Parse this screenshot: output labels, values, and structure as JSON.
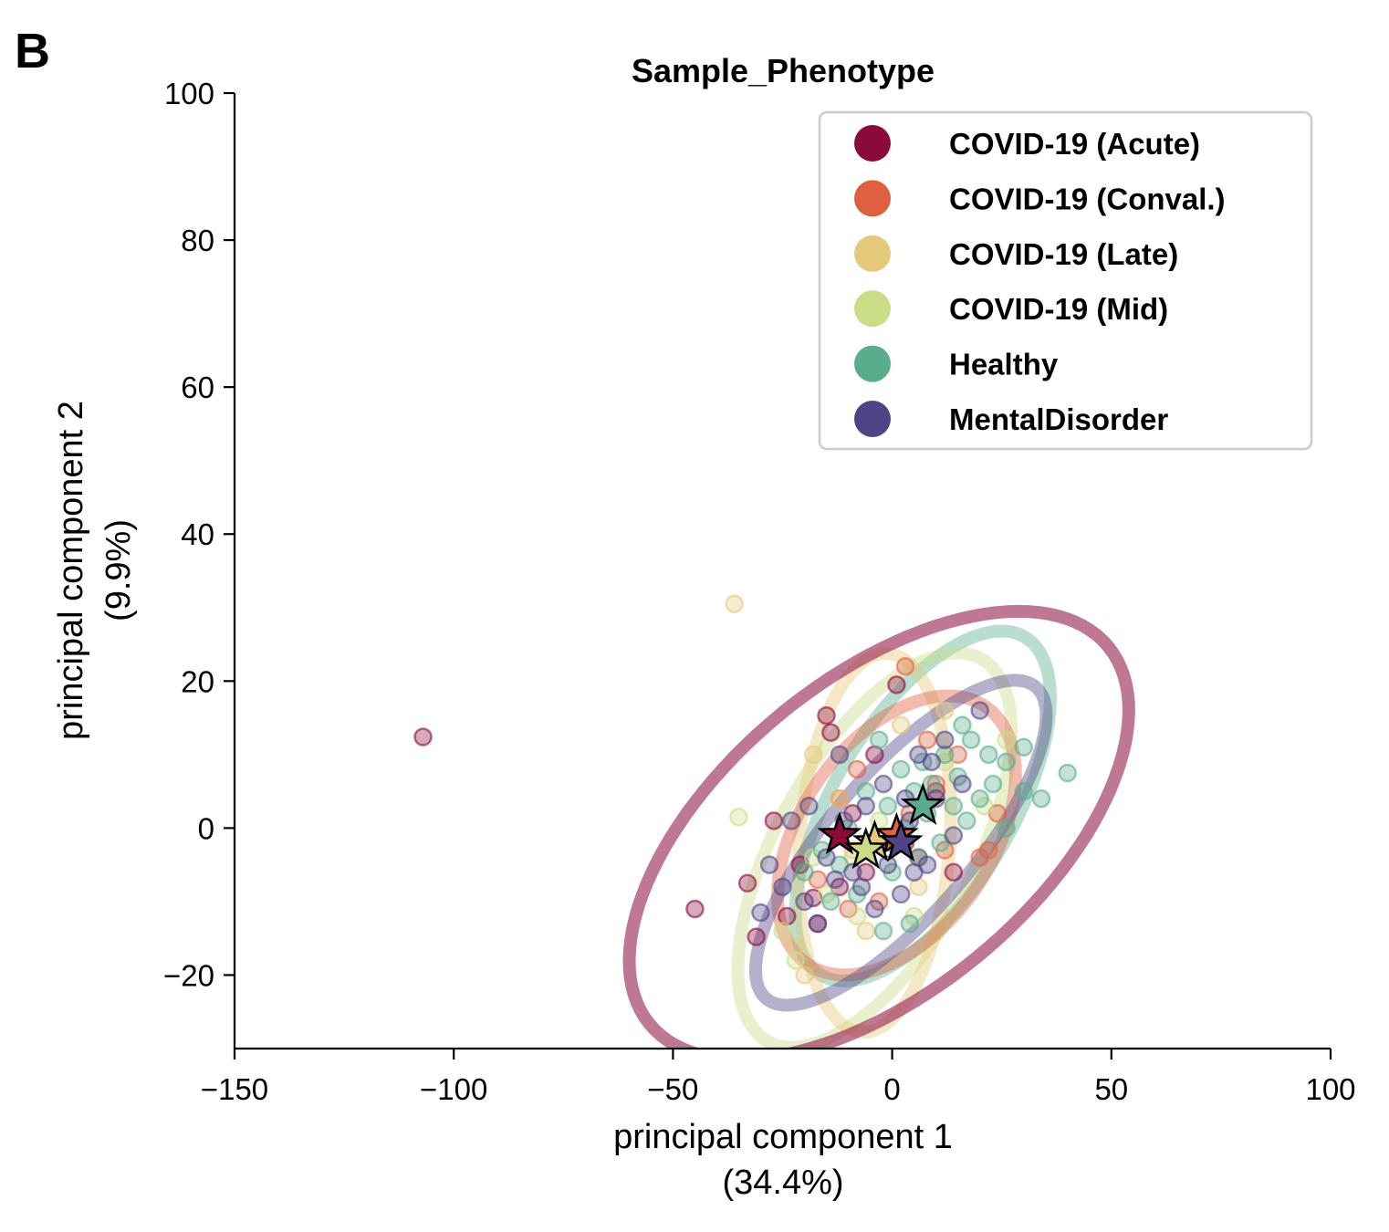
{
  "panel_label": "B",
  "chart_data": {
    "type": "scatter",
    "title": "Sample_Phenotype",
    "xlabel_line1": "principal component 1",
    "xlabel_line2": "(34.4%)",
    "ylabel_line1": "principal component 2",
    "ylabel_line2": "(9.9%)",
    "xlim": [
      -150,
      100
    ],
    "ylim": [
      -30,
      100
    ],
    "xticks": [
      -150,
      -100,
      -50,
      0,
      50,
      100
    ],
    "yticks": [
      -20,
      0,
      20,
      40,
      60,
      80,
      100
    ],
    "xtick_labels": [
      "−150",
      "−100",
      "−50",
      "0",
      "50",
      "100"
    ],
    "ytick_labels": [
      "−20",
      "0",
      "20",
      "40",
      "60",
      "80",
      "100"
    ],
    "legend_position": "top-right",
    "series": [
      {
        "name": "COVID-19 (Acute)",
        "color": "#8b0a3c",
        "centroid": [
          -12,
          -1
        ],
        "ellipse": {
          "cx": -3,
          "cy": -1,
          "rx": 60,
          "ry": 24,
          "angle": 20
        },
        "points": [
          [
            -107,
            12.4
          ],
          [
            -45,
            -11
          ],
          [
            -33,
            -7.5
          ],
          [
            -31,
            -14.8
          ],
          [
            -27,
            1
          ],
          [
            -21,
            -5
          ],
          [
            -18,
            -9.5
          ],
          [
            -15,
            15.3
          ],
          [
            -14,
            13
          ],
          [
            -12,
            -8
          ],
          [
            -6,
            -6
          ],
          [
            -4,
            10
          ],
          [
            1,
            19.5
          ],
          [
            3,
            -2
          ],
          [
            6,
            -4
          ],
          [
            -9,
            2
          ],
          [
            -24,
            -12
          ],
          [
            -17,
            -13
          ],
          [
            14,
            -6
          ],
          [
            10,
            5
          ]
        ]
      },
      {
        "name": "COVID-19 (Conval.)",
        "color": "#de6040",
        "centroid": [
          1,
          -1
        ],
        "ellipse": {
          "cx": 1,
          "cy": -1,
          "rx": 29,
          "ry": 16,
          "angle": 25
        },
        "points": [
          [
            3,
            22
          ],
          [
            -8,
            8
          ],
          [
            10,
            6
          ],
          [
            20,
            -4
          ],
          [
            -10,
            -11
          ],
          [
            -17,
            -7
          ],
          [
            15,
            10
          ],
          [
            24,
            2
          ],
          [
            4,
            2
          ],
          [
            -3,
            -10
          ],
          [
            12,
            -3
          ],
          [
            22,
            -3
          ],
          [
            8,
            12
          ],
          [
            -12,
            4
          ]
        ]
      },
      {
        "name": "COVID-19 (Late)",
        "color": "#e6c87a",
        "centroid": [
          -4,
          -2
        ],
        "ellipse": {
          "cx": -4,
          "cy": -2,
          "rx": 26,
          "ry": 17,
          "angle": 80
        },
        "points": [
          [
            -36,
            30.5
          ],
          [
            -20,
            -20
          ],
          [
            -12,
            4
          ],
          [
            -6,
            -14
          ],
          [
            2,
            14
          ],
          [
            -18,
            10
          ],
          [
            6,
            -8
          ],
          [
            -9,
            -3
          ],
          [
            -22,
            -16
          ],
          [
            12,
            16
          ]
        ]
      },
      {
        "name": "COVID-19 (Mid)",
        "color": "#cbdc87",
        "centroid": [
          -6,
          -3
        ],
        "ellipse": {
          "cx": -4,
          "cy": -3,
          "rx": 37,
          "ry": 18,
          "angle": 38
        },
        "points": [
          [
            -35,
            1.5
          ],
          [
            -25,
            -14
          ],
          [
            -22,
            -18
          ],
          [
            -15,
            -9
          ],
          [
            -9,
            -4
          ],
          [
            -3,
            1
          ],
          [
            12,
            9
          ],
          [
            21,
            3
          ],
          [
            26,
            12
          ],
          [
            -18,
            -4
          ],
          [
            5,
            -12
          ],
          [
            -8,
            -12
          ]
        ]
      },
      {
        "name": "Healthy",
        "color": "#59ad8c",
        "centroid": [
          7,
          3
        ],
        "ellipse": {
          "cx": 7,
          "cy": 3,
          "rx": 34,
          "ry": 16,
          "angle": 36
        },
        "points": [
          [
            40,
            7.5
          ],
          [
            34,
            4
          ],
          [
            30,
            11
          ],
          [
            26,
            9
          ],
          [
            23,
            6
          ],
          [
            22,
            10
          ],
          [
            20,
            4
          ],
          [
            18,
            12
          ],
          [
            17,
            1
          ],
          [
            15,
            7
          ],
          [
            14,
            3
          ],
          [
            12,
            10
          ],
          [
            11,
            -2
          ],
          [
            9,
            6
          ],
          [
            8,
            2
          ],
          [
            7,
            9
          ],
          [
            6,
            -4
          ],
          [
            5,
            5
          ],
          [
            3,
            0
          ],
          [
            2,
            8
          ],
          [
            0,
            -6
          ],
          [
            -1,
            3
          ],
          [
            -3,
            12
          ],
          [
            -5,
            -2
          ],
          [
            -6,
            5
          ],
          [
            -8,
            -9
          ],
          [
            -10,
            0
          ],
          [
            -12,
            -5
          ],
          [
            -14,
            -10
          ],
          [
            -2,
            -14
          ],
          [
            4,
            -13
          ],
          [
            -16,
            -3
          ],
          [
            26,
            0
          ],
          [
            30,
            5
          ],
          [
            -20,
            -6
          ],
          [
            16,
            14
          ]
        ]
      },
      {
        "name": "MentalDisorder",
        "color": "#4f4586",
        "centroid": [
          2,
          -2
        ],
        "ellipse": {
          "cx": 2,
          "cy": -2,
          "rx": 38,
          "ry": 12,
          "angle": 31
        },
        "points": [
          [
            20,
            16
          ],
          [
            -30,
            -11.5
          ],
          [
            -28,
            -5
          ],
          [
            -23,
            1
          ],
          [
            -20,
            -10
          ],
          [
            -15,
            -4
          ],
          [
            -12,
            10
          ],
          [
            -9,
            -6
          ],
          [
            -6,
            3
          ],
          [
            -4,
            -11
          ],
          [
            -2,
            6
          ],
          [
            0,
            -2
          ],
          [
            2,
            -9
          ],
          [
            4,
            1
          ],
          [
            6,
            10
          ],
          [
            8,
            -5
          ],
          [
            10,
            4
          ],
          [
            12,
            12
          ],
          [
            14,
            -1
          ],
          [
            16,
            6
          ],
          [
            -17,
            -13
          ],
          [
            -11,
            1
          ],
          [
            -7,
            -8
          ],
          [
            -1,
            -5
          ],
          [
            3,
            4
          ],
          [
            -25,
            -8
          ],
          [
            -19,
            3
          ],
          [
            5,
            -6
          ],
          [
            9,
            9
          ],
          [
            -13,
            -7
          ]
        ]
      }
    ]
  }
}
